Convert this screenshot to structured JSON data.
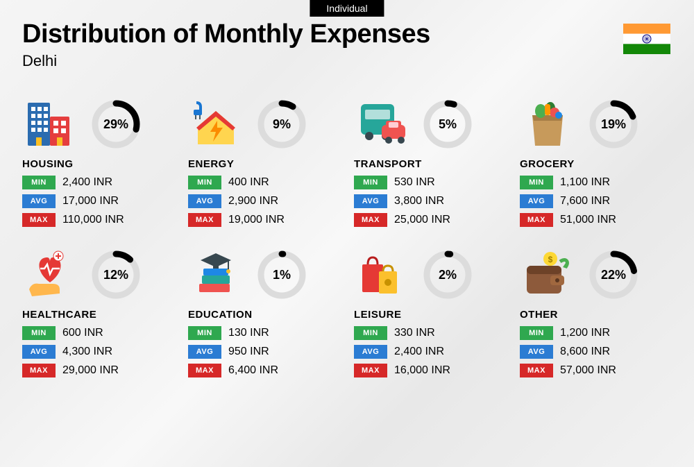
{
  "tab_label": "Individual",
  "title": "Distribution of Monthly Expenses",
  "subtitle": "Delhi",
  "currency": "INR",
  "donut_style": {
    "bg_color": "#dcdcdc",
    "fg_color": "#000000",
    "stroke_width": 9,
    "radius": 30
  },
  "badge_colors": {
    "min": "#2fa84f",
    "avg": "#2b7cd3",
    "max": "#d62828"
  },
  "badge_labels": {
    "min": "MIN",
    "avg": "AVG",
    "max": "MAX"
  },
  "flag": {
    "saffron": "#ff9933",
    "white": "#ffffff",
    "green": "#138808",
    "chakra": "#000080"
  },
  "categories": [
    {
      "key": "housing",
      "label": "HOUSING",
      "pct": 29,
      "min": "2,400",
      "avg": "17,000",
      "max": "110,000",
      "icon": "buildings"
    },
    {
      "key": "energy",
      "label": "ENERGY",
      "pct": 9,
      "min": "400",
      "avg": "2,900",
      "max": "19,000",
      "icon": "energy-house"
    },
    {
      "key": "transport",
      "label": "TRANSPORT",
      "pct": 5,
      "min": "530",
      "avg": "3,800",
      "max": "25,000",
      "icon": "bus-car"
    },
    {
      "key": "grocery",
      "label": "GROCERY",
      "pct": 19,
      "min": "1,100",
      "avg": "7,600",
      "max": "51,000",
      "icon": "grocery-bag"
    },
    {
      "key": "healthcare",
      "label": "HEALTHCARE",
      "pct": 12,
      "min": "600",
      "avg": "4,300",
      "max": "29,000",
      "icon": "heart-hand"
    },
    {
      "key": "education",
      "label": "EDUCATION",
      "pct": 1,
      "min": "130",
      "avg": "950",
      "max": "6,400",
      "icon": "books-cap"
    },
    {
      "key": "leisure",
      "label": "LEISURE",
      "pct": 2,
      "min": "330",
      "avg": "2,400",
      "max": "16,000",
      "icon": "shopping-bags"
    },
    {
      "key": "other",
      "label": "OTHER",
      "pct": 22,
      "min": "1,200",
      "avg": "8,600",
      "max": "57,000",
      "icon": "wallet"
    }
  ]
}
